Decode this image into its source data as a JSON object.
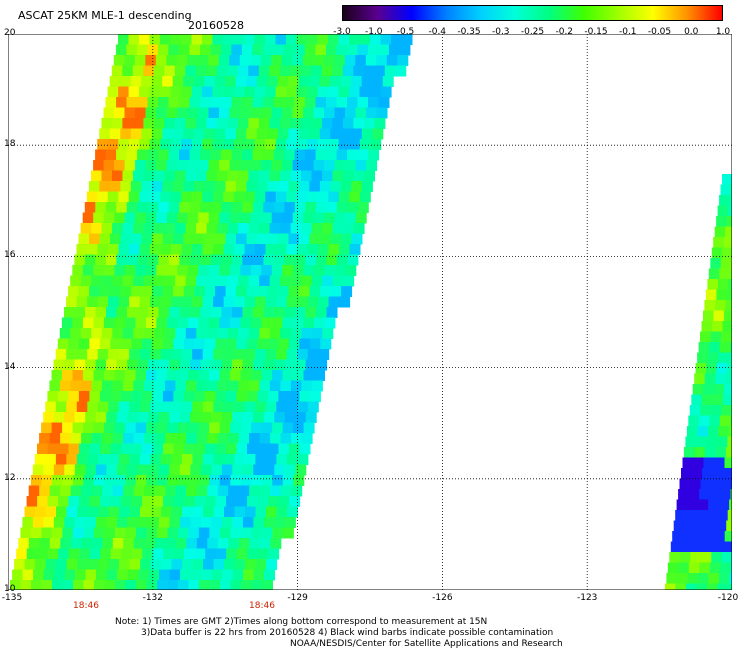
{
  "title": "ASCAT 25KM MLE-1 descending",
  "date": "20160528",
  "colorbar": {
    "ticks": [
      "-3.0",
      "-1.0",
      "-0.5",
      "-0.4",
      "-0.35",
      "-0.3",
      "-0.25",
      "-0.2",
      "-0.15",
      "-0.1",
      "-0.05",
      "0.0",
      "1.0"
    ],
    "colors": [
      "#1a001a",
      "#5a0090",
      "#0000ff",
      "#0080ff",
      "#00d0ff",
      "#00ffd8",
      "#00ff80",
      "#40ff00",
      "#a0ff00",
      "#ffff00",
      "#ff9000",
      "#ff0000"
    ]
  },
  "map": {
    "lat_labels": [
      "20",
      "18",
      "16",
      "14",
      "12",
      "10"
    ],
    "lon_labels": [
      "-135",
      "-132",
      "-129",
      "-126",
      "-123",
      "-120"
    ],
    "time_labels": [
      "18:46",
      "18:46"
    ]
  },
  "notes": {
    "line1": "Note: 1) Times are GMT 2)Times along bottom correspond to measurement at 15N",
    "line2": "3)Data buffer is 22 hrs from 20160528 4) Black wind barbs indicate possible contamination",
    "line3": "NOAA/NESDIS/Center for Satellite Applications and Research"
  }
}
